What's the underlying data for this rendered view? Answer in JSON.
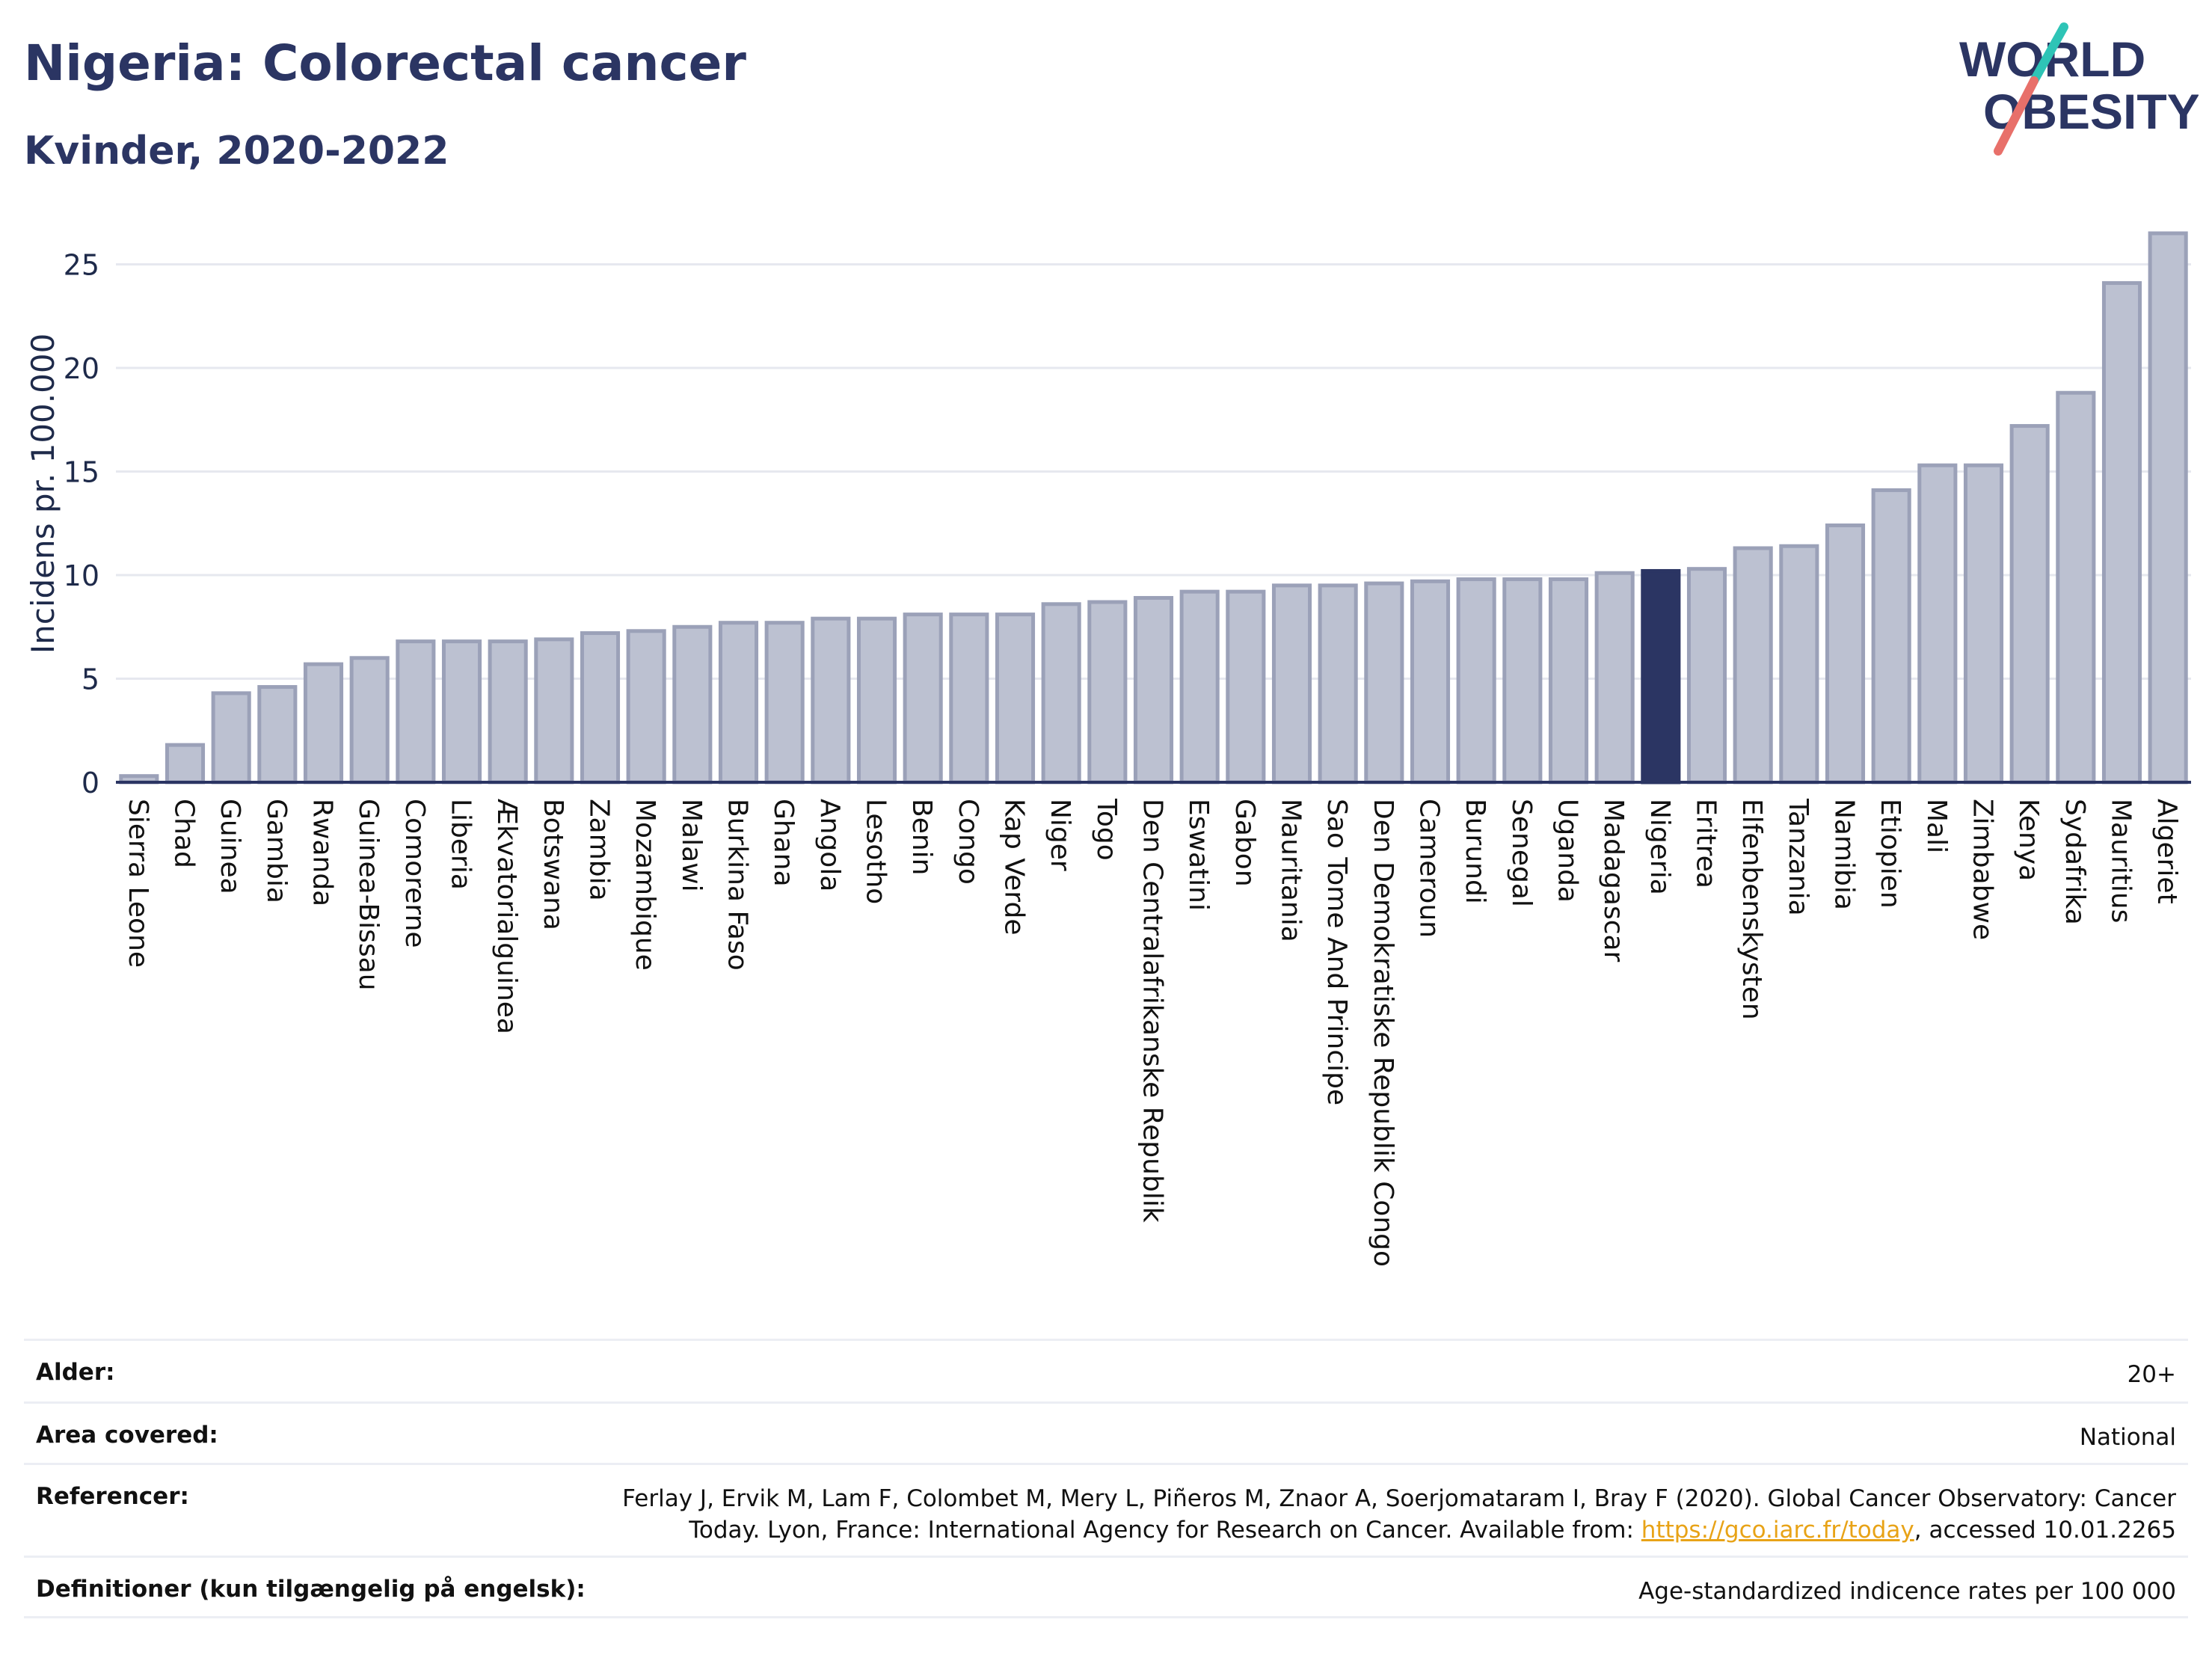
{
  "header": {
    "title": "Nigeria: Colorectal cancer",
    "subtitle": "Kvinder, 2020-2022",
    "logo_text_line1": "WORLD",
    "logo_text_line2": "OBESITY"
  },
  "colors": {
    "bar": "#bcc1d1",
    "bar_stroke": "#9ba1b8",
    "highlight": "#2b3563",
    "title": "#2b3563",
    "logo_teal": "#2ec4b6",
    "logo_coral": "#e8706a"
  },
  "chart_data": {
    "type": "bar",
    "ylabel": "Incidens pr. 100.000",
    "xlabel": "",
    "ylim": [
      0,
      27
    ],
    "yticks": [
      0,
      5,
      10,
      15,
      20,
      25
    ],
    "grid": true,
    "highlight": "Nigeria",
    "categories": [
      "Sierra Leone",
      "Chad",
      "Guinea",
      "Gambia",
      "Rwanda",
      "Guinea-Bissau",
      "Comorerne",
      "Liberia",
      "Ækvatorialguinea",
      "Botswana",
      "Zambia",
      "Mozambique",
      "Malawi",
      "Burkina Faso",
      "Ghana",
      "Angola",
      "Lesotho",
      "Benin",
      "Congo",
      "Kap Verde",
      "Niger",
      "Togo",
      "Den Centralafrikanske Republik",
      "Eswatini",
      "Gabon",
      "Mauritania",
      "Sao Tome And Principe",
      "Den Demokratiske Republik Congo",
      "Cameroun",
      "Burundi",
      "Senegal",
      "Uganda",
      "Madagascar",
      "Nigeria",
      "Eritrea",
      "Elfenbenskysten",
      "Tanzania",
      "Namibia",
      "Etiopien",
      "Mali",
      "Zimbabwe",
      "Kenya",
      "Sydafrika",
      "Mauritius",
      "Algeriet"
    ],
    "values": [
      0.3,
      1.8,
      4.3,
      4.6,
      5.7,
      6.0,
      6.8,
      6.8,
      6.8,
      6.9,
      7.2,
      7.3,
      7.5,
      7.7,
      7.7,
      7.9,
      7.9,
      8.1,
      8.1,
      8.1,
      8.6,
      8.7,
      8.9,
      9.2,
      9.2,
      9.5,
      9.5,
      9.6,
      9.7,
      9.8,
      9.8,
      9.8,
      10.1,
      10.2,
      10.3,
      11.3,
      11.4,
      12.4,
      14.1,
      15.3,
      15.3,
      17.2,
      18.8,
      24.1,
      26.5
    ]
  },
  "meta": {
    "rows": [
      {
        "label": "Alder:",
        "value": "20+"
      },
      {
        "label": "Area covered:",
        "value": "National"
      },
      {
        "label": "Referencer:",
        "value_pre": "Ferlay J, Ervik M, Lam F, Colombet M, Mery L, Piñeros M, Znaor A, Soerjomataram I, Bray F (2020). Global Cancer Observatory: Cancer",
        "value_line2_pre": "Today. Lyon, France: International Agency for Research on Cancer. Available from: ",
        "link": "https://gco.iarc.fr/today",
        "value_post": ", accessed 10.01.2265"
      },
      {
        "label": "Definitioner (kun tilgængelig på engelsk):",
        "value": "Age-standardized indicence rates per 100 000"
      }
    ]
  }
}
